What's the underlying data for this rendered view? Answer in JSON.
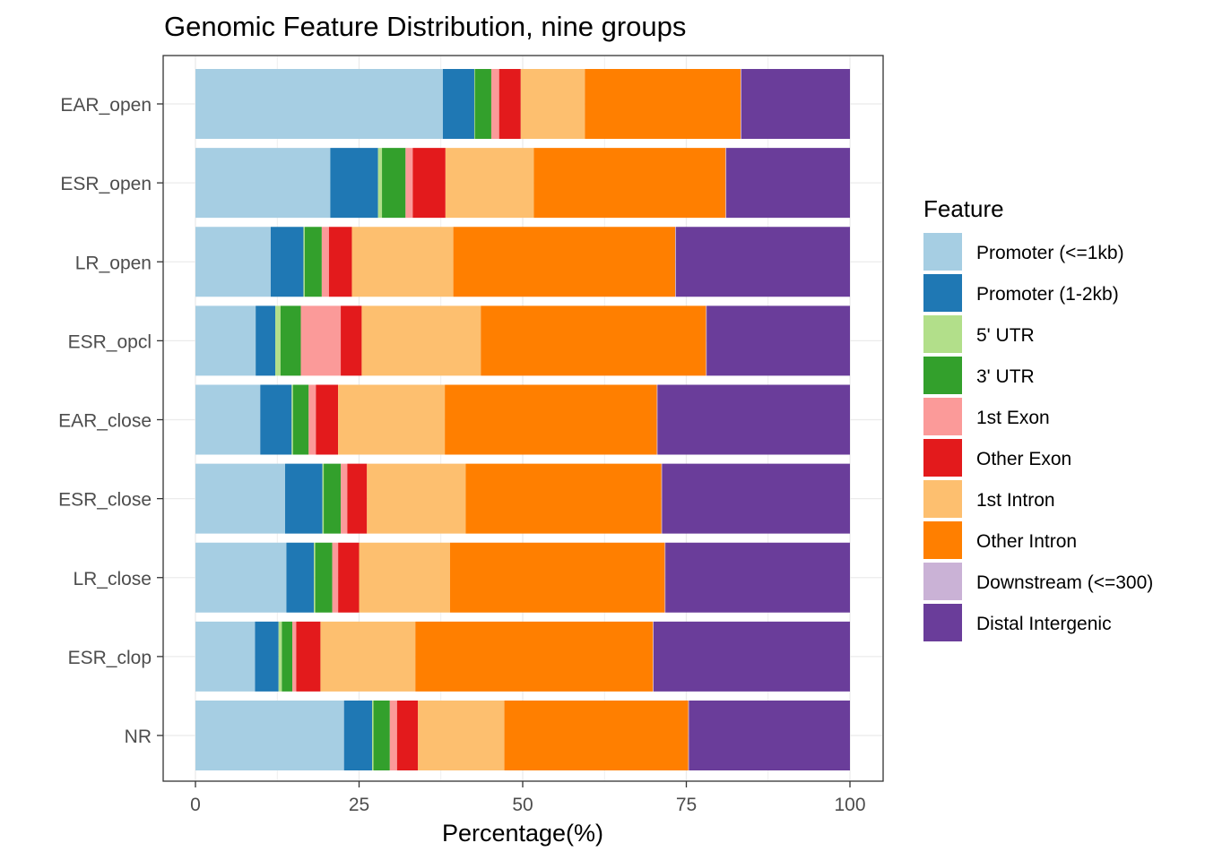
{
  "chart_data": {
    "type": "bar",
    "orientation": "horizontal",
    "stacked": true,
    "title": "Genomic Feature Distribution, nine groups",
    "xlabel": "Percentage(%)",
    "ylabel": "",
    "xlim": [
      0,
      100
    ],
    "xticks": [
      "0",
      "25",
      "50",
      "75",
      "100"
    ],
    "grid": true,
    "legend_title": "Feature",
    "legend_position": "right",
    "categories": [
      "EAR_open",
      "ESR_open",
      "LR_open",
      "ESR_opcl",
      "EAR_close",
      "ESR_close",
      "LR_close",
      "ESR_clop",
      "NR"
    ],
    "series": [
      {
        "name": "Promoter (<=1kb)",
        "color": "#A6CEE3",
        "values": [
          37.8,
          20.6,
          11.5,
          9.2,
          9.9,
          13.7,
          13.9,
          9.1,
          22.7
        ]
      },
      {
        "name": "Promoter (1-2kb)",
        "color": "#1F78B4",
        "values": [
          4.8,
          7.3,
          5.0,
          3.0,
          4.8,
          5.7,
          4.2,
          3.6,
          4.3
        ]
      },
      {
        "name": "5' UTR",
        "color": "#B2DF8A",
        "values": [
          0.1,
          0.6,
          0.2,
          0.8,
          0.2,
          0.2,
          0.2,
          0.5,
          0.2
        ]
      },
      {
        "name": "3' UTR",
        "color": "#33A02C",
        "values": [
          2.5,
          3.6,
          2.6,
          3.1,
          2.4,
          2.6,
          2.6,
          1.6,
          2.5
        ]
      },
      {
        "name": "1st Exon",
        "color": "#FB9A99",
        "values": [
          1.2,
          1.1,
          1.1,
          6.1,
          1.1,
          1.0,
          0.9,
          0.6,
          1.1
        ]
      },
      {
        "name": "Other Exon",
        "color": "#E31A1C",
        "values": [
          3.3,
          5.0,
          3.5,
          3.2,
          3.4,
          3.0,
          3.2,
          3.7,
          3.2
        ]
      },
      {
        "name": "1st Intron",
        "color": "#FDBF6F",
        "values": [
          9.8,
          13.5,
          15.5,
          18.2,
          16.3,
          15.1,
          13.9,
          14.5,
          13.2
        ]
      },
      {
        "name": "Other Intron",
        "color": "#FF7F00",
        "values": [
          23.8,
          29.3,
          33.9,
          34.4,
          32.4,
          29.9,
          32.8,
          36.3,
          28.1
        ]
      },
      {
        "name": "Downstream (<=300)",
        "color": "#CAB2D6",
        "values": [
          0.1,
          0.1,
          0.1,
          0.1,
          0.1,
          0.1,
          0.1,
          0.1,
          0.1
        ]
      },
      {
        "name": "Distal Intergenic",
        "color": "#6A3D9A",
        "values": [
          16.6,
          18.9,
          26.6,
          21.9,
          29.4,
          28.7,
          28.2,
          30.0,
          24.6
        ]
      }
    ]
  }
}
